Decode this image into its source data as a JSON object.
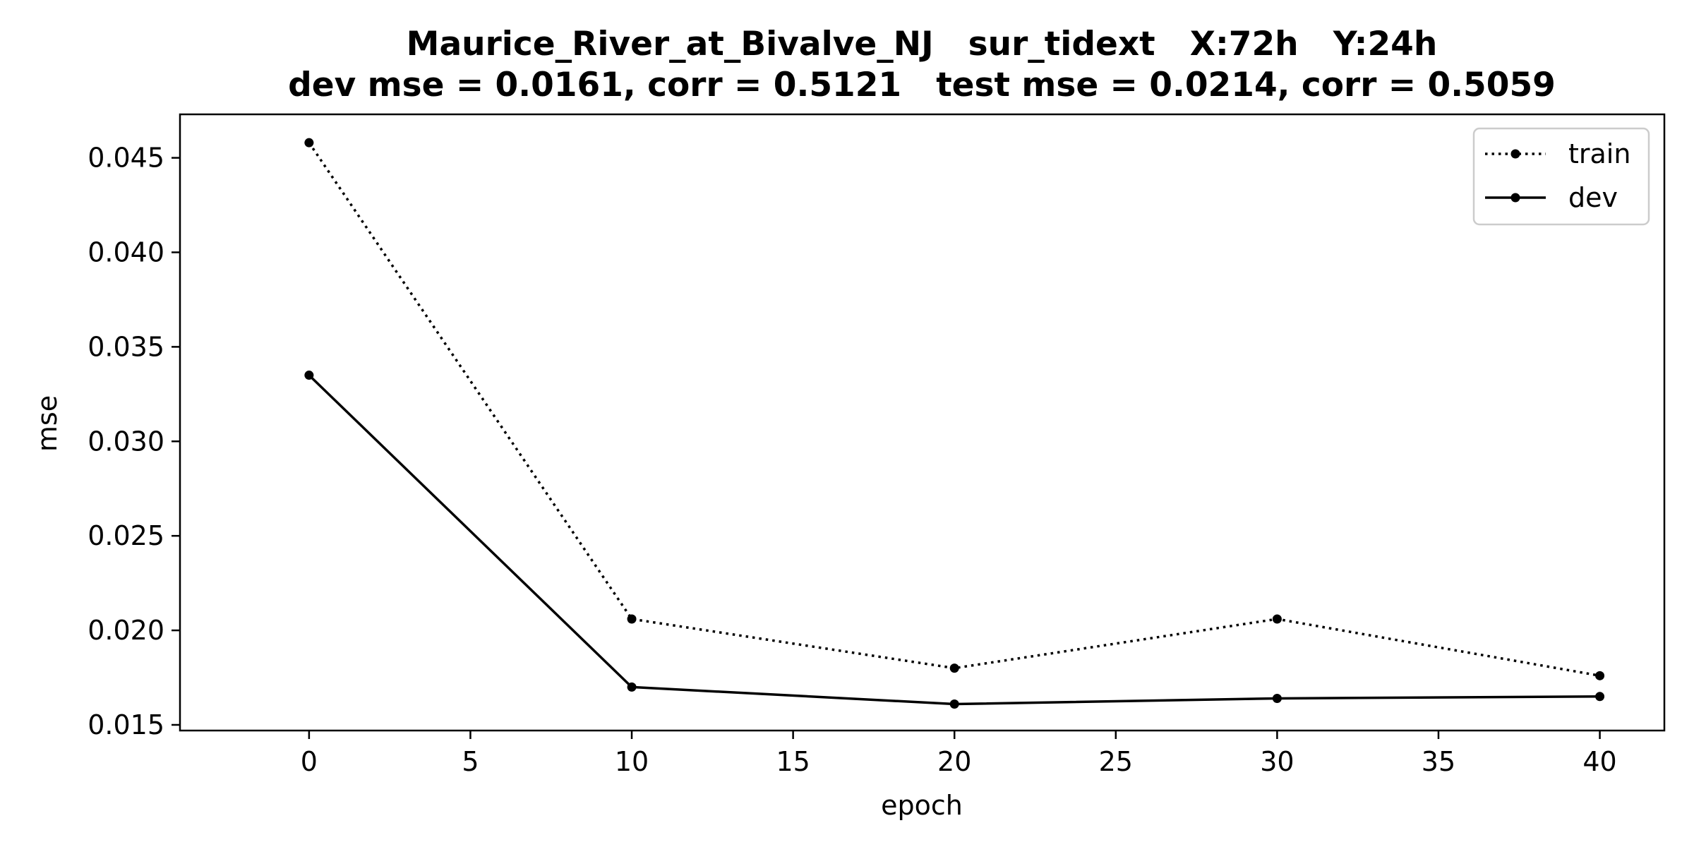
{
  "chart_data": {
    "type": "line",
    "title_line1": "Maurice_River_at_Bivalve_NJ   sur_tidext   X:72h   Y:24h",
    "title_line2": "dev mse = 0.0161, corr = 0.5121   test mse = 0.0214, corr = 0.5059",
    "xlabel": "epoch",
    "ylabel": "mse",
    "xlim": [
      -4,
      42
    ],
    "ylim": [
      0.0147,
      0.0473
    ],
    "xticks": [
      0,
      5,
      10,
      15,
      20,
      25,
      30,
      35,
      40
    ],
    "yticks": [
      0.015,
      0.02,
      0.025,
      0.03,
      0.035,
      0.04,
      0.045
    ],
    "ytick_labels": [
      "0.015",
      "0.020",
      "0.025",
      "0.030",
      "0.035",
      "0.040",
      "0.045"
    ],
    "grid": false,
    "legend_position": "top-right",
    "x": [
      0,
      10,
      20,
      30,
      40
    ],
    "series": [
      {
        "name": "train",
        "style": "dotted",
        "color": "#000000",
        "values": [
          0.0458,
          0.0206,
          0.018,
          0.0206,
          0.0176
        ]
      },
      {
        "name": "dev",
        "style": "solid",
        "color": "#000000",
        "values": [
          0.0335,
          0.017,
          0.0161,
          0.0164,
          0.0165
        ]
      }
    ]
  }
}
